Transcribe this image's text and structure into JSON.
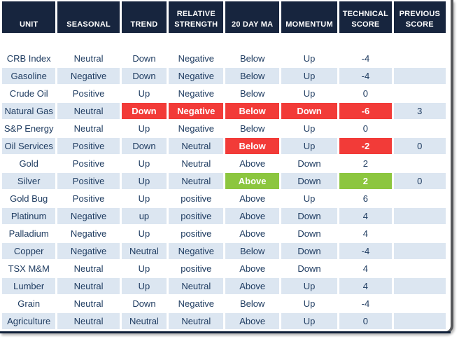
{
  "chart_data": {
    "type": "table",
    "columns": [
      "UNIT",
      "SEASONAL",
      "TREND",
      "RELATIVE STRENGTH",
      "20 DAY MA",
      "MOMENTUM",
      "TECHNICAL SCORE",
      "PREVIOUS SCORE"
    ],
    "rows": [
      {
        "stripe": "white",
        "cells": [
          {
            "v": "CRB Index"
          },
          {
            "v": "Neutral"
          },
          {
            "v": "Down"
          },
          {
            "v": "Negative"
          },
          {
            "v": "Below"
          },
          {
            "v": "Up"
          },
          {
            "v": "-4"
          },
          {
            "v": ""
          }
        ]
      },
      {
        "stripe": "blue",
        "cells": [
          {
            "v": "Gasoline"
          },
          {
            "v": "Negative"
          },
          {
            "v": "Down"
          },
          {
            "v": "Negative"
          },
          {
            "v": "Below"
          },
          {
            "v": "Up"
          },
          {
            "v": "-4"
          },
          {
            "v": ""
          }
        ]
      },
      {
        "stripe": "white",
        "cells": [
          {
            "v": "Crude Oil"
          },
          {
            "v": "Positive"
          },
          {
            "v": "Up"
          },
          {
            "v": "Negative"
          },
          {
            "v": "Below"
          },
          {
            "v": "Up"
          },
          {
            "v": "0"
          },
          {
            "v": ""
          }
        ]
      },
      {
        "stripe": "blue",
        "cells": [
          {
            "v": "Natural Gas"
          },
          {
            "v": "Neutral"
          },
          {
            "v": "Down",
            "h": "red"
          },
          {
            "v": "Negative",
            "h": "red"
          },
          {
            "v": "Below",
            "h": "red"
          },
          {
            "v": "Down",
            "h": "red"
          },
          {
            "v": "-6",
            "h": "red"
          },
          {
            "v": "3"
          }
        ]
      },
      {
        "stripe": "white",
        "cells": [
          {
            "v": "S&P Energy"
          },
          {
            "v": "Neutral"
          },
          {
            "v": "Up"
          },
          {
            "v": "Negative"
          },
          {
            "v": "Below"
          },
          {
            "v": "Up"
          },
          {
            "v": "0"
          },
          {
            "v": ""
          }
        ]
      },
      {
        "stripe": "blue",
        "cells": [
          {
            "v": "Oil Services"
          },
          {
            "v": "Positive"
          },
          {
            "v": "Down"
          },
          {
            "v": "Neutral"
          },
          {
            "v": "Below",
            "h": "red"
          },
          {
            "v": "Up"
          },
          {
            "v": "-2",
            "h": "red"
          },
          {
            "v": "0"
          }
        ]
      },
      {
        "stripe": "white",
        "cells": [
          {
            "v": "Gold"
          },
          {
            "v": "Positive"
          },
          {
            "v": "Up"
          },
          {
            "v": "Neutral"
          },
          {
            "v": "Above"
          },
          {
            "v": "Down"
          },
          {
            "v": "2"
          },
          {
            "v": ""
          }
        ]
      },
      {
        "stripe": "blue",
        "cells": [
          {
            "v": "Silver"
          },
          {
            "v": "Positive"
          },
          {
            "v": "Up"
          },
          {
            "v": "Neutral"
          },
          {
            "v": "Above",
            "h": "green"
          },
          {
            "v": "Down"
          },
          {
            "v": "2",
            "h": "green"
          },
          {
            "v": "0"
          }
        ]
      },
      {
        "stripe": "white",
        "cells": [
          {
            "v": "Gold Bug"
          },
          {
            "v": "Positive"
          },
          {
            "v": "Up"
          },
          {
            "v": "positive"
          },
          {
            "v": "Above"
          },
          {
            "v": "Up"
          },
          {
            "v": "6"
          },
          {
            "v": ""
          }
        ]
      },
      {
        "stripe": "blue",
        "cells": [
          {
            "v": "Platinum"
          },
          {
            "v": "Negative"
          },
          {
            "v": "up"
          },
          {
            "v": "positive"
          },
          {
            "v": "Above"
          },
          {
            "v": "Down"
          },
          {
            "v": "4"
          },
          {
            "v": ""
          }
        ]
      },
      {
        "stripe": "white",
        "cells": [
          {
            "v": "Palladium"
          },
          {
            "v": "Negative"
          },
          {
            "v": "Up"
          },
          {
            "v": "positive"
          },
          {
            "v": "Above"
          },
          {
            "v": "Down"
          },
          {
            "v": "4"
          },
          {
            "v": ""
          }
        ]
      },
      {
        "stripe": "blue",
        "cells": [
          {
            "v": "Copper"
          },
          {
            "v": "Negative"
          },
          {
            "v": "Neutral"
          },
          {
            "v": "Negative"
          },
          {
            "v": "Below"
          },
          {
            "v": "Down"
          },
          {
            "v": "-4"
          },
          {
            "v": ""
          }
        ]
      },
      {
        "stripe": "white",
        "cells": [
          {
            "v": "TSX M&M"
          },
          {
            "v": "Neutral"
          },
          {
            "v": "Up"
          },
          {
            "v": "positive"
          },
          {
            "v": "Above"
          },
          {
            "v": "Down"
          },
          {
            "v": "4"
          },
          {
            "v": ""
          }
        ]
      },
      {
        "stripe": "blue",
        "cells": [
          {
            "v": "Lumber"
          },
          {
            "v": "Neutral"
          },
          {
            "v": "Up"
          },
          {
            "v": "Neutral"
          },
          {
            "v": "Above"
          },
          {
            "v": "Up"
          },
          {
            "v": "4"
          },
          {
            "v": ""
          }
        ]
      },
      {
        "stripe": "white",
        "cells": [
          {
            "v": "Grain"
          },
          {
            "v": "Neutral"
          },
          {
            "v": "Down"
          },
          {
            "v": "Negative"
          },
          {
            "v": "Below"
          },
          {
            "v": "Up"
          },
          {
            "v": "-4"
          },
          {
            "v": ""
          }
        ]
      },
      {
        "stripe": "blue",
        "cells": [
          {
            "v": "Agriculture"
          },
          {
            "v": "Neutral"
          },
          {
            "v": "Neutral"
          },
          {
            "v": "Neutral"
          },
          {
            "v": "Above"
          },
          {
            "v": "Up"
          },
          {
            "v": "0"
          },
          {
            "v": ""
          }
        ]
      }
    ]
  },
  "colors": {
    "header_bg": "#17253e",
    "header_text": "#ffffff",
    "row_bg": "#ffffff",
    "row_alt_bg": "#dce6f1",
    "cell_text": "#1f3c61",
    "red_highlight_bg": "#f23b38",
    "green_highlight_bg": "#8cc63f",
    "highlight_text": "#ffffff",
    "frame_border": "#57585b",
    "table_bottom_border": "#0f1f38"
  }
}
